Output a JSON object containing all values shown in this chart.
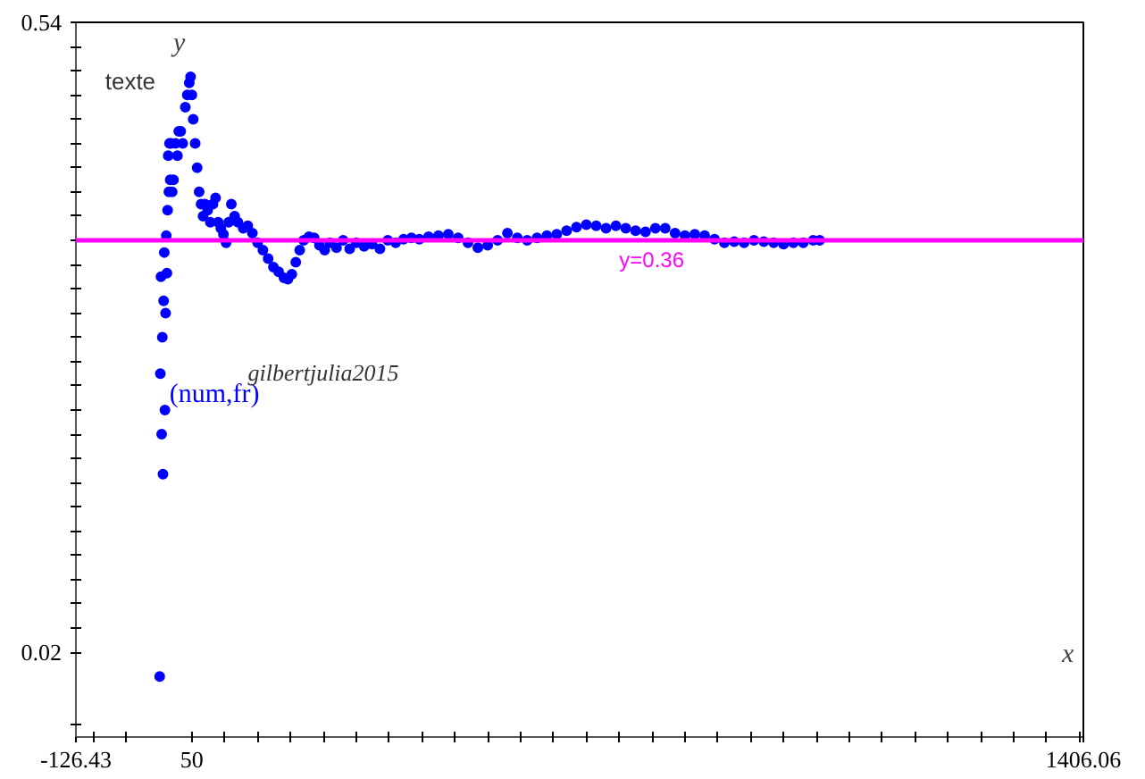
{
  "chart_data": {
    "type": "scatter",
    "xlabel": "x",
    "ylabel": "y",
    "xlim": [
      -126.43,
      1406.06
    ],
    "ylim": [
      -0.05,
      0.54
    ],
    "xticks": [
      {
        "value": -126.43,
        "label": "-126.43"
      },
      {
        "value": -100,
        "label": null
      },
      {
        "value": -50,
        "label": null
      },
      50,
      {
        "value": 100,
        "label": null
      },
      {
        "value": 150,
        "label": null
      },
      {
        "value": 200,
        "label": null
      },
      {
        "value": 250,
        "label": null
      },
      {
        "value": 300,
        "label": null
      },
      {
        "value": 350,
        "label": null
      },
      {
        "value": 400,
        "label": null
      },
      {
        "value": 450,
        "label": null
      },
      {
        "value": 500,
        "label": null
      },
      {
        "value": 550,
        "label": null
      },
      {
        "value": 600,
        "label": null
      },
      {
        "value": 650,
        "label": null
      },
      {
        "value": 700,
        "label": null
      },
      {
        "value": 750,
        "label": null
      },
      {
        "value": 800,
        "label": null
      },
      {
        "value": 850,
        "label": null
      },
      {
        "value": 900,
        "label": null
      },
      {
        "value": 950,
        "label": null
      },
      {
        "value": 1000,
        "label": null
      },
      {
        "value": 1050,
        "label": null
      },
      {
        "value": 1100,
        "label": null
      },
      {
        "value": 1150,
        "label": null
      },
      {
        "value": 1200,
        "label": null
      },
      {
        "value": 1250,
        "label": null
      },
      {
        "value": 1300,
        "label": null
      },
      {
        "value": 1350,
        "label": null
      },
      {
        "value": 1400,
        "label": null
      },
      {
        "value": 1406.06,
        "label": "1406.06"
      }
    ],
    "yticks": [
      {
        "value": -0.04,
        "label": null
      },
      0.02,
      {
        "value": 0.04,
        "label": null
      },
      {
        "value": 0.06,
        "label": null
      },
      {
        "value": 0.08,
        "label": null
      },
      {
        "value": 0.1,
        "label": null
      },
      {
        "value": 0.12,
        "label": null
      },
      {
        "value": 0.14,
        "label": null
      },
      {
        "value": 0.16,
        "label": null
      },
      {
        "value": 0.18,
        "label": null
      },
      {
        "value": 0.2,
        "label": null
      },
      {
        "value": 0.22,
        "label": null
      },
      {
        "value": 0.24,
        "label": null
      },
      {
        "value": 0.26,
        "label": null
      },
      {
        "value": 0.28,
        "label": null
      },
      {
        "value": 0.3,
        "label": null
      },
      {
        "value": 0.32,
        "label": null
      },
      {
        "value": 0.34,
        "label": null
      },
      {
        "value": 0.36,
        "label": null
      },
      {
        "value": 0.38,
        "label": null
      },
      {
        "value": 0.4,
        "label": null
      },
      {
        "value": 0.42,
        "label": null
      },
      {
        "value": 0.44,
        "label": null
      },
      {
        "value": 0.46,
        "label": null
      },
      {
        "value": 0.48,
        "label": null
      },
      {
        "value": 0.5,
        "label": null
      },
      {
        "value": 0.52,
        "label": null
      },
      0.54
    ],
    "marker": "circle",
    "series": [
      {
        "name": "(num,fr)",
        "color": "#0000ff",
        "x": [
          1,
          2,
          3,
          4,
          5,
          6,
          7,
          8,
          9,
          10,
          11,
          12,
          13,
          14,
          15,
          16,
          17,
          18,
          20,
          22,
          25,
          28,
          30,
          33,
          36,
          40,
          43,
          46,
          48,
          50,
          52,
          55,
          58,
          61,
          64,
          67,
          70,
          74,
          78,
          82,
          86,
          90,
          94,
          98,
          102,
          106,
          110,
          115,
          120,
          128,
          135,
          142,
          150,
          158,
          166,
          174,
          182,
          190,
          196,
          202,
          208,
          214,
          220,
          228,
          236,
          244,
          252,
          260,
          270,
          280,
          290,
          300,
          312,
          324,
          336,
          348,
          360,
          372,
          384,
          396,
          410,
          425,
          440,
          455,
          470,
          485,
          500,
          515,
          530,
          545,
          560,
          575,
          590,
          605,
          620,
          635,
          650,
          665,
          680,
          695,
          710,
          725,
          740,
          755,
          770,
          785,
          800,
          815,
          830,
          845,
          860,
          875,
          890,
          905,
          920,
          935,
          950,
          965,
          980,
          995,
          1005
        ],
        "values": [
          0,
          0.25,
          0.33,
          0.2,
          0.28,
          0.167,
          0.31,
          0.35,
          0.22,
          0.3,
          0.364,
          0.333,
          0.385,
          0.43,
          0.4,
          0.44,
          0.41,
          0.44,
          0.4,
          0.41,
          0.44,
          0.43,
          0.45,
          0.45,
          0.44,
          0.47,
          0.48,
          0.49,
          0.495,
          0.48,
          0.46,
          0.44,
          0.42,
          0.4,
          0.39,
          0.38,
          0.39,
          0.385,
          0.375,
          0.39,
          0.395,
          0.375,
          0.37,
          0.365,
          0.358,
          0.375,
          0.39,
          0.38,
          0.375,
          0.37,
          0.372,
          0.366,
          0.358,
          0.352,
          0.345,
          0.338,
          0.334,
          0.329,
          0.328,
          0.332,
          0.342,
          0.352,
          0.36,
          0.363,
          0.362,
          0.356,
          0.352,
          0.358,
          0.354,
          0.36,
          0.353,
          0.358,
          0.355,
          0.357,
          0.353,
          0.36,
          0.358,
          0.361,
          0.362,
          0.361,
          0.363,
          0.364,
          0.365,
          0.362,
          0.358,
          0.354,
          0.356,
          0.36,
          0.366,
          0.362,
          0.36,
          0.362,
          0.364,
          0.365,
          0.368,
          0.371,
          0.373,
          0.372,
          0.37,
          0.372,
          0.37,
          0.368,
          0.367,
          0.37,
          0.37,
          0.366,
          0.364,
          0.365,
          0.364,
          0.361,
          0.358,
          0.359,
          0.358,
          0.36,
          0.359,
          0.358,
          0.357,
          0.358,
          0.358,
          0.36,
          0.36
        ]
      }
    ],
    "ref_lines": [
      {
        "axis": "y",
        "value": 0.36,
        "label": "y=0.36",
        "color": "#ff00ff"
      }
    ],
    "annotations": [
      "texte",
      "gilbertjulia2015"
    ],
    "grid": false
  }
}
